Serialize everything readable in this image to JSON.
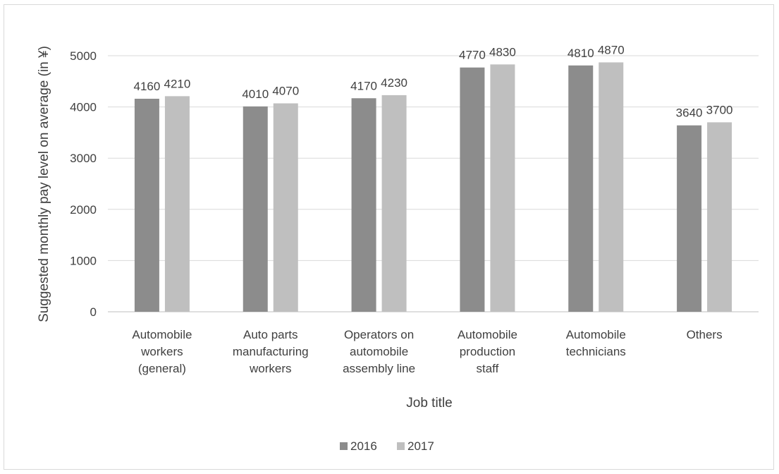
{
  "chart_data": {
    "type": "bar",
    "title": "",
    "xlabel": "Job title",
    "ylabel": "Suggested monthly pay level on average (in ¥)",
    "ylim": [
      0,
      5000
    ],
    "yticks": [
      0,
      1000,
      2000,
      3000,
      4000,
      5000
    ],
    "grid": true,
    "legend_position": "bottom",
    "categories": [
      [
        "Automobile",
        "workers",
        "(general)"
      ],
      [
        "Auto parts",
        "manufacturing",
        "workers"
      ],
      [
        "Operators on",
        "automobile",
        "assembly line"
      ],
      [
        "Automobile",
        "production",
        "staff"
      ],
      [
        "Automobile",
        "technicians"
      ],
      [
        "Others"
      ]
    ],
    "series": [
      {
        "name": "2016",
        "color": "#8c8c8c",
        "values": [
          4160,
          4010,
          4170,
          4770,
          4810,
          3640
        ]
      },
      {
        "name": "2017",
        "color": "#bfbfbf",
        "values": [
          4210,
          4070,
          4230,
          4830,
          4870,
          3700
        ]
      }
    ]
  }
}
